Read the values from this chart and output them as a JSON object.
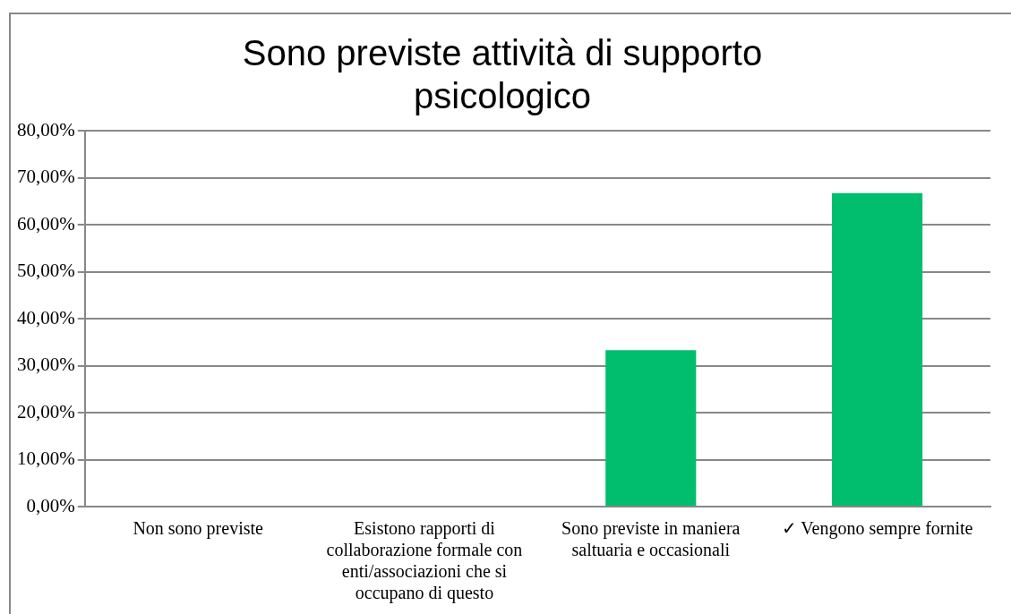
{
  "chart_data": {
    "type": "bar",
    "title": "Sono previste attività di supporto psicologico",
    "categories": [
      "Non sono previste",
      "Esistono rapporti di collaborazione formale con enti/associazioni che si occupano di questo",
      "Sono previste in maniera saltuaria e occasionali",
      "✓ Vengono sempre fornite"
    ],
    "values": [
      0,
      0,
      33.3,
      66.7
    ],
    "color": "#00be6e",
    "ylim": [
      0,
      80
    ],
    "yticks": [
      {
        "value": 0,
        "label": "0,00%"
      },
      {
        "value": 10,
        "label": "10,00%"
      },
      {
        "value": 20,
        "label": "20,00%"
      },
      {
        "value": 30,
        "label": "30,00%"
      },
      {
        "value": 40,
        "label": "40,00%"
      },
      {
        "value": 50,
        "label": "50,00%"
      },
      {
        "value": 60,
        "label": "60,00%"
      },
      {
        "value": 70,
        "label": "70,00%"
      },
      {
        "value": 80,
        "label": "80,00%"
      }
    ],
    "grid": "y"
  }
}
